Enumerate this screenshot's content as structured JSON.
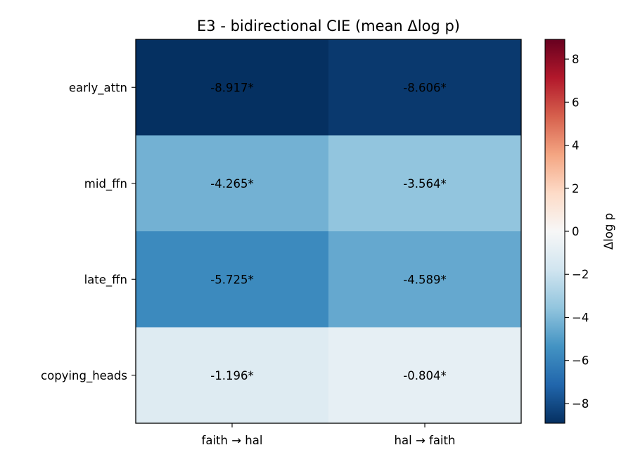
{
  "chart_data": {
    "type": "heatmap",
    "title": "E3 - bidirectional CIE (mean Δlog p)",
    "rows": [
      "early_attn",
      "mid_ffn",
      "late_ffn",
      "copying_heads"
    ],
    "columns": [
      "faith → hal",
      "hal → faith"
    ],
    "values": [
      [
        -8.917,
        -8.606
      ],
      [
        -4.265,
        -3.564
      ],
      [
        -5.725,
        -4.589
      ],
      [
        -1.196,
        -0.804
      ]
    ],
    "cell_labels": [
      [
        "-8.917*",
        "-8.606*"
      ],
      [
        "-4.265*",
        "-3.564*"
      ],
      [
        "-5.725*",
        "-4.589*"
      ],
      [
        "-1.196*",
        "-0.804*"
      ]
    ],
    "colorbar": {
      "label": "Δlog p",
      "range": [
        -8.917,
        8.917
      ],
      "ticks": [
        8,
        6,
        4,
        2,
        0,
        -2,
        -4,
        -6,
        -8
      ],
      "tick_labels": [
        "8",
        "6",
        "4",
        "2",
        "0",
        "−2",
        "−4",
        "−6",
        "−8"
      ],
      "colormap": "RdBu_r",
      "colors": [
        "#053061",
        "#2166ac",
        "#4393c3",
        "#92c5de",
        "#d1e5f0",
        "#f7f7f7",
        "#fddbc7",
        "#f4a582",
        "#d6604d",
        "#b2182b",
        "#67001f"
      ]
    }
  }
}
